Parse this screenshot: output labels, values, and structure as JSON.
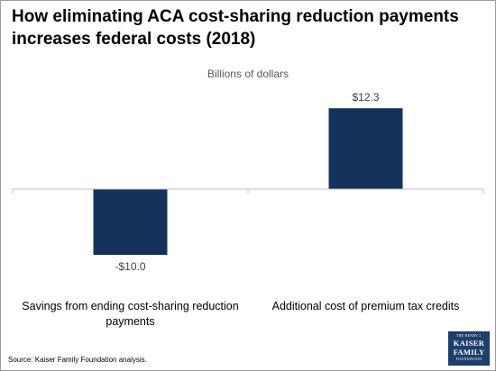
{
  "title": "How eliminating ACA cost-sharing reduction payments increases federal costs (2018)",
  "source": "Source: Kaiser Family Foundation analysis.",
  "logo": {
    "line1": "THE HENRY J.",
    "line2": "KAISER",
    "line3": "FAMILY",
    "line4": "FOUNDATION"
  },
  "chart_data": {
    "type": "bar",
    "title": "How eliminating ACA cost-sharing reduction payments increases federal costs (2018)",
    "subtitle": "Billions of dollars",
    "categories": [
      [
        "Savings from ending cost-sharing reduction",
        "payments"
      ],
      [
        "Additional cost of premium tax credits"
      ]
    ],
    "values": [
      -10.0,
      12.3
    ],
    "data_labels": [
      "-$10.0",
      "$12.3"
    ],
    "ylim": [
      -12,
      15
    ],
    "grid": false,
    "legend": "none",
    "bar_color": "#15335a"
  }
}
